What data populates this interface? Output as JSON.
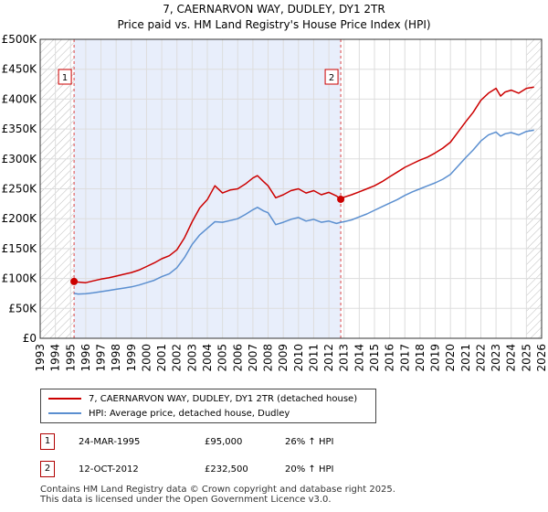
{
  "chart_data": {
    "type": "line",
    "title": "7, CAERNARVON WAY, DUDLEY, DY1 2TR",
    "subtitle": "Price paid vs. HM Land Registry's House Price Index (HPI)",
    "xlim": [
      1993,
      2026
    ],
    "ylim": [
      0,
      500000
    ],
    "x_ticks": [
      1993,
      1994,
      1995,
      1996,
      1997,
      1998,
      1999,
      2000,
      2001,
      2002,
      2003,
      2004,
      2005,
      2006,
      2007,
      2008,
      2009,
      2010,
      2011,
      2012,
      2013,
      2014,
      2015,
      2016,
      2017,
      2018,
      2019,
      2020,
      2021,
      2022,
      2023,
      2024,
      2025,
      2026
    ],
    "y_ticks": [
      {
        "value": 0,
        "label": "£0"
      },
      {
        "value": 50000,
        "label": "£50K"
      },
      {
        "value": 100000,
        "label": "£100K"
      },
      {
        "value": 150000,
        "label": "£150K"
      },
      {
        "value": 200000,
        "label": "£200K"
      },
      {
        "value": 250000,
        "label": "£250K"
      },
      {
        "value": 300000,
        "label": "£300K"
      },
      {
        "value": 350000,
        "label": "£350K"
      },
      {
        "value": 400000,
        "label": "£400K"
      },
      {
        "value": 450000,
        "label": "£450K"
      },
      {
        "value": 500000,
        "label": "£500K"
      }
    ],
    "hatched_before": 1995.23,
    "hatched_after": 2025.0,
    "shaded_span": [
      1995.23,
      2012.78
    ],
    "series": [
      {
        "name": "7, CAERNARVON WAY, DUDLEY, DY1 2TR (detached house)",
        "color": "#cc0000",
        "x": [
          1995.23,
          1995.5,
          1996,
          1996.5,
          1997,
          1997.5,
          1998,
          1998.5,
          1999,
          1999.5,
          2000,
          2000.5,
          2001,
          2001.5,
          2002,
          2002.5,
          2003,
          2003.5,
          2004,
          2004.5,
          2005,
          2005.5,
          2006,
          2006.5,
          2007,
          2007.3,
          2007.7,
          2008,
          2008.5,
          2009,
          2009.5,
          2010,
          2010.5,
          2011,
          2011.5,
          2012,
          2012.5,
          2012.78,
          2013,
          2013.5,
          2014,
          2014.5,
          2015,
          2015.5,
          2016,
          2016.5,
          2017,
          2017.5,
          2018,
          2018.5,
          2019,
          2019.5,
          2020,
          2020.5,
          2021,
          2021.5,
          2022,
          2022.5,
          2023,
          2023.3,
          2023.6,
          2024,
          2024.5,
          2025,
          2025.5
        ],
        "values": [
          95000,
          94000,
          93000,
          96000,
          99000,
          101000,
          104000,
          107000,
          110000,
          114000,
          120000,
          126000,
          133000,
          138000,
          148000,
          168000,
          195000,
          218000,
          232000,
          255000,
          243000,
          248000,
          250000,
          258000,
          268000,
          272000,
          262000,
          255000,
          235000,
          240000,
          247000,
          250000,
          243000,
          247000,
          240000,
          244000,
          238000,
          232500,
          236000,
          240000,
          245000,
          250000,
          255000,
          262000,
          270000,
          278000,
          286000,
          292000,
          298000,
          303000,
          310000,
          318000,
          328000,
          345000,
          362000,
          378000,
          398000,
          410000,
          418000,
          405000,
          412000,
          415000,
          410000,
          418000,
          420000
        ]
      },
      {
        "name": "HPI: Average price, detached house, Dudley",
        "color": "#5b8fd0",
        "x": [
          1995.23,
          1995.5,
          1996,
          1996.5,
          1997,
          1997.5,
          1998,
          1998.5,
          1999,
          1999.5,
          2000,
          2000.5,
          2001,
          2001.5,
          2002,
          2002.5,
          2003,
          2003.5,
          2004,
          2004.5,
          2005,
          2005.5,
          2006,
          2006.5,
          2007,
          2007.3,
          2007.7,
          2008,
          2008.5,
          2009,
          2009.5,
          2010,
          2010.5,
          2011,
          2011.5,
          2012,
          2012.5,
          2012.78,
          2013,
          2013.5,
          2014,
          2014.5,
          2015,
          2015.5,
          2016,
          2016.5,
          2017,
          2017.5,
          2018,
          2018.5,
          2019,
          2019.5,
          2020,
          2020.5,
          2021,
          2021.5,
          2022,
          2022.5,
          2023,
          2023.3,
          2023.6,
          2024,
          2024.5,
          2025,
          2025.5
        ],
        "values": [
          75000,
          74000,
          74500,
          76000,
          78000,
          80000,
          82000,
          84000,
          86000,
          89000,
          93000,
          97000,
          103000,
          108000,
          118000,
          135000,
          157000,
          173000,
          184000,
          195000,
          194000,
          197000,
          200000,
          207000,
          215000,
          219000,
          213000,
          210000,
          190000,
          194000,
          199000,
          202000,
          196000,
          199000,
          194000,
          196000,
          192000,
          194000,
          195000,
          198000,
          203000,
          208000,
          214000,
          220000,
          226000,
          232000,
          239000,
          245000,
          250000,
          255000,
          260000,
          266000,
          274000,
          288000,
          302000,
          315000,
          330000,
          340000,
          345000,
          338000,
          342000,
          344000,
          340000,
          346000,
          348000
        ]
      }
    ],
    "markers": [
      {
        "label": "1",
        "x": 1995.23,
        "y": 95000
      },
      {
        "label": "2",
        "x": 2012.78,
        "y": 232500
      }
    ]
  },
  "legend": {
    "red_label": "7, CAERNARVON WAY, DUDLEY, DY1 2TR (detached house)",
    "blue_label": "HPI: Average price, detached house, Dudley"
  },
  "sales": [
    {
      "badge": "1",
      "date": "24-MAR-1995",
      "price": "£95,000",
      "hpi": "26% ↑ HPI"
    },
    {
      "badge": "2",
      "date": "12-OCT-2012",
      "price": "£232,500",
      "hpi": "20% ↑ HPI"
    }
  ],
  "footer": {
    "line1": "Contains HM Land Registry data © Crown copyright and database right 2025.",
    "line2": "This data is licensed under the Open Government Licence v3.0."
  }
}
